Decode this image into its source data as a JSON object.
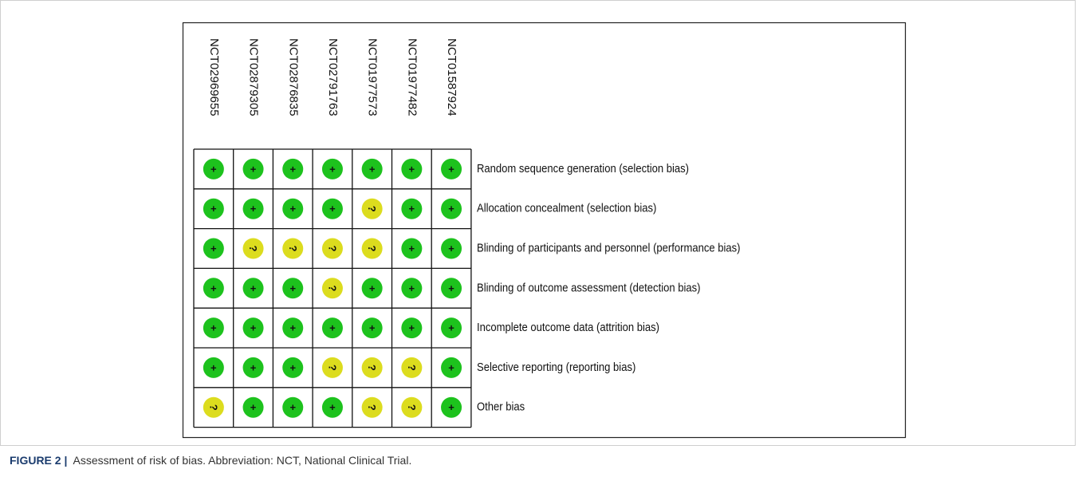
{
  "figure": {
    "columns": [
      "NCT02969655",
      "NCT02879305",
      "NCT02876835",
      "NCT02791763",
      "NCT01977573",
      "NCT01977482",
      "NCT01587924"
    ],
    "rows": [
      {
        "label": "Random sequence generation (selection bias)",
        "cells": [
          "+",
          "+",
          "+",
          "+",
          "+",
          "+",
          "+"
        ]
      },
      {
        "label": "Allocation concealment (selection bias)",
        "cells": [
          "+",
          "+",
          "+",
          "+",
          "?",
          "+",
          "+"
        ]
      },
      {
        "label": "Blinding of participants and personnel (performance bias)",
        "cells": [
          "+",
          "?",
          "?",
          "?",
          "?",
          "+",
          "+"
        ]
      },
      {
        "label": "Blinding of outcome assessment (detection bias)",
        "cells": [
          "+",
          "+",
          "+",
          "?",
          "+",
          "+",
          "+"
        ]
      },
      {
        "label": "Incomplete outcome data (attrition bias)",
        "cells": [
          "+",
          "+",
          "+",
          "+",
          "+",
          "+",
          "+"
        ]
      },
      {
        "label": "Selective reporting (reporting bias)",
        "cells": [
          "+",
          "+",
          "+",
          "?",
          "?",
          "?",
          "+"
        ]
      },
      {
        "label": "Other bias",
        "cells": [
          "?",
          "+",
          "+",
          "+",
          "?",
          "?",
          "+"
        ]
      }
    ],
    "judgement_colors": {
      "+": "#1dc21d",
      "?": "#dcdc1e"
    },
    "caption": {
      "label": "FIGURE 2 |",
      "text": "Assessment of risk of bias. Abbreviation: NCT, National Clinical Trial."
    }
  }
}
